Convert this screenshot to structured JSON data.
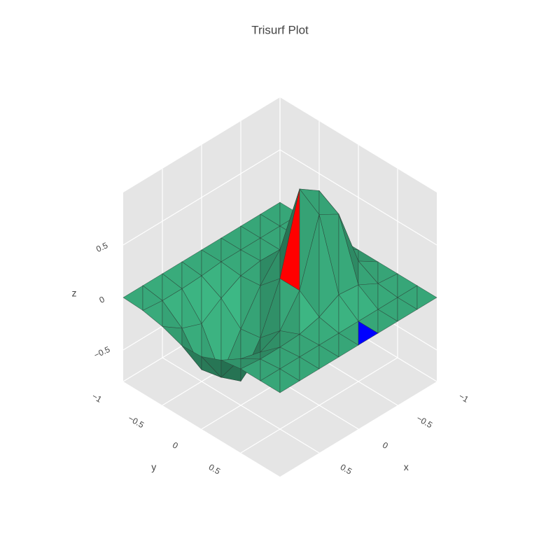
{
  "chart_data": {
    "type": "trisurf",
    "title": "Trisurf Plot",
    "x_label": "x",
    "y_label": "y",
    "z_label": "z",
    "x": [
      -1,
      -0.75,
      -0.5,
      -0.25,
      0,
      0.25,
      0.5,
      0.75,
      1
    ],
    "y": [
      -1,
      -0.75,
      -0.5,
      -0.25,
      0,
      0.25,
      0.5,
      0.75,
      1
    ],
    "z": [
      [
        0,
        0,
        0,
        0,
        0,
        0,
        0,
        0,
        0
      ],
      [
        0,
        0,
        0,
        0.04,
        0.14,
        0.12,
        0.02,
        0,
        0
      ],
      [
        0,
        0,
        0,
        0.19,
        0.79,
        0.68,
        0.12,
        0,
        0
      ],
      [
        0,
        0,
        0.01,
        0.23,
        0.92,
        0.79,
        0.14,
        0,
        0
      ],
      [
        0,
        0,
        -0.02,
        0,
        0.18,
        0.18,
        0.04,
        0,
        0
      ],
      [
        0,
        -0.02,
        -0.12,
        -0.3,
        -0.27,
        -0.09,
        -0.01,
        0,
        0
      ],
      [
        0,
        -0.03,
        -0.25,
        -0.63,
        -0.57,
        -0.18,
        -0.02,
        0,
        0
      ],
      [
        0,
        -0.03,
        -0.18,
        -0.46,
        -0.42,
        -0.13,
        -0.02,
        0,
        0
      ],
      [
        0,
        -0.01,
        -0.05,
        -0.12,
        -0.11,
        -0.03,
        0,
        0,
        0
      ]
    ],
    "color": "#3cb482",
    "highlight_faces": [
      {
        "i": 3,
        "j": 4,
        "half": 0,
        "color": "#ff0000"
      },
      {
        "i": 3,
        "j": 7,
        "half": 1,
        "color": "#0000ff"
      }
    ],
    "xlim": [
      -1,
      1
    ],
    "ylim": [
      -1,
      1
    ],
    "zlim": [
      -0.8,
      1
    ],
    "xticks": [
      {
        "value": -1,
        "label": "−1"
      },
      {
        "value": -0.5,
        "label": "−0.5"
      },
      0,
      0.5
    ],
    "yticks": [
      {
        "value": -1,
        "label": "−1"
      },
      {
        "value": -0.5,
        "label": "−0.5"
      },
      0,
      0.5
    ],
    "zticks": [
      {
        "value": -0.5,
        "label": "−0.5"
      },
      0,
      0.5
    ],
    "grid": true
  }
}
